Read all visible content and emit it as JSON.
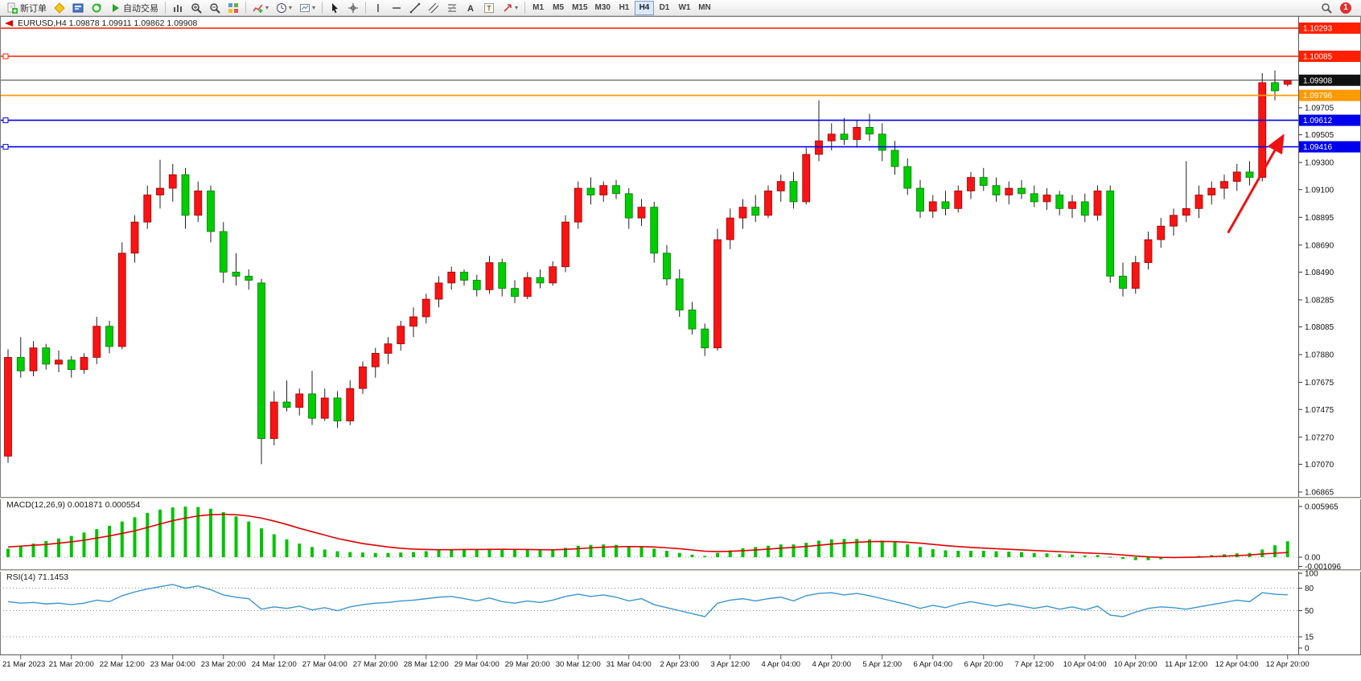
{
  "toolbar": {
    "groups": [
      {
        "items": [
          {
            "name": "new-order",
            "icon": "new-order",
            "label": "新订单"
          },
          {
            "name": "metaeditor",
            "icon": "metaeditor"
          },
          {
            "name": "terminal",
            "icon": "terminal"
          },
          {
            "name": "refresh",
            "icon": "refresh"
          },
          {
            "name": "autotrading",
            "icon": "autotrading",
            "label": "自动交易"
          }
        ]
      },
      {
        "items": [
          {
            "name": "bar-chart",
            "icon": "bars"
          },
          {
            "name": "zoom-in",
            "icon": "zoom-in"
          },
          {
            "name": "zoom-out",
            "icon": "zoom-out"
          },
          {
            "name": "tile-windows",
            "icon": "tile"
          }
        ]
      },
      {
        "items": [
          {
            "name": "indicators",
            "icon": "indicators",
            "dropdown": true
          },
          {
            "name": "periods",
            "icon": "clock",
            "dropdown": true
          },
          {
            "name": "templates",
            "icon": "template",
            "dropdown": true
          }
        ]
      },
      {
        "items": [
          {
            "name": "cursor",
            "icon": "cursor"
          },
          {
            "name": "crosshair",
            "icon": "crosshair"
          }
        ]
      },
      {
        "items": [
          {
            "name": "vertical-line",
            "icon": "vline"
          },
          {
            "name": "horizontal-line",
            "icon": "hline"
          },
          {
            "name": "trendline",
            "icon": "trendline"
          },
          {
            "name": "equidistant-channel",
            "icon": "channel"
          },
          {
            "name": "fibonacci-retracement",
            "icon": "fibo"
          },
          {
            "name": "text",
            "icon": "text-a"
          },
          {
            "name": "text-label",
            "icon": "text-t"
          },
          {
            "name": "arrow-tools",
            "icon": "arrows",
            "dropdown": true
          }
        ]
      }
    ],
    "timeframes": [
      "M1",
      "M5",
      "M15",
      "M30",
      "H1",
      "H4",
      "D1",
      "W1",
      "MN"
    ],
    "active_timeframe": "H4",
    "notification_badge": "1"
  },
  "chart_data": [
    {
      "type": "candlestick",
      "symbol": "EURUSD",
      "timeframe": "H4",
      "title": "EURUSD,H4 1.09878 1.09911 1.09862 1.09908",
      "up_color": "#f81414",
      "down_color": "#00cd00",
      "wick_color": "#222222",
      "y_ticks": [
        "1.09705",
        "1.09505",
        "1.09300",
        "1.09100",
        "1.08895",
        "1.08690",
        "1.08490",
        "1.08285",
        "1.08085",
        "1.07880",
        "1.07675",
        "1.07475",
        "1.07270",
        "1.07070",
        "1.06865"
      ],
      "price_tags": [
        {
          "text": "1.10293",
          "color": "#ff2000"
        },
        {
          "text": "1.10085",
          "color": "#ff2000"
        },
        {
          "text": "1.09908",
          "color": "#111111"
        },
        {
          "text": "1.09796",
          "color": "#ff9900"
        },
        {
          "text": "1.09612",
          "color": "#0000ee"
        },
        {
          "text": "1.09416",
          "color": "#0000ee"
        }
      ],
      "price_lines": [
        {
          "price": 1.10293,
          "color": "#ff2000",
          "width": 1.6
        },
        {
          "price": 1.10085,
          "color": "#ff2000",
          "width": 1.6,
          "handle": true
        },
        {
          "price": 1.09908,
          "color": "#333333",
          "width": 1
        },
        {
          "price": 1.09796,
          "color": "#ff9900",
          "width": 1.8
        },
        {
          "price": 1.09612,
          "color": "#0000ee",
          "width": 1.6,
          "handle": true
        },
        {
          "price": 1.09416,
          "color": "#0000ee",
          "width": 1.6,
          "handle": true
        }
      ],
      "x_labels": [
        "21 Mar 2023",
        "21 Mar 20:00",
        "22 Mar 12:00",
        "23 Mar 04:00",
        "23 Mar 20:00",
        "24 Mar 12:00",
        "27 Mar 04:00",
        "27 Mar 20:00",
        "28 Mar 12:00",
        "29 Mar 04:00",
        "29 Mar 20:00",
        "30 Mar 12:00",
        "31 Mar 04:00",
        "2 Apr 23:00",
        "3 Apr 12:00",
        "4 Apr 04:00",
        "4 Apr 20:00",
        "5 Apr 12:00",
        "6 Apr 04:00",
        "6 Apr 20:00",
        "7 Apr 12:00",
        "10 Apr 04:00",
        "10 Apr 20:00",
        "11 Apr 12:00",
        "12 Apr 04:00",
        "12 Apr 20:00"
      ],
      "bars_per_label": 4,
      "first_labeled_bar": 1,
      "candles": [
        [
          1.0713,
          1.0792,
          1.0708,
          1.0786
        ],
        [
          1.0786,
          1.0801,
          1.0771,
          1.0776
        ],
        [
          1.0776,
          1.0798,
          1.0772,
          1.0793
        ],
        [
          1.0793,
          1.0796,
          1.0777,
          1.0781
        ],
        [
          1.0781,
          1.0791,
          1.0775,
          1.0784
        ],
        [
          1.0784,
          1.0787,
          1.0771,
          1.0777
        ],
        [
          1.0777,
          1.0789,
          1.0774,
          1.0786
        ],
        [
          1.0786,
          1.0816,
          1.0781,
          1.0809
        ],
        [
          1.0809,
          1.0813,
          1.0789,
          1.0794
        ],
        [
          1.0794,
          1.0871,
          1.0792,
          1.0863
        ],
        [
          1.0863,
          1.0891,
          1.0856,
          1.0886
        ],
        [
          1.0886,
          1.0913,
          1.0881,
          1.0906
        ],
        [
          1.0906,
          1.0932,
          1.0896,
          1.0911
        ],
        [
          1.0911,
          1.0929,
          1.0901,
          1.0921
        ],
        [
          1.0921,
          1.0926,
          1.0881,
          1.0891
        ],
        [
          1.0891,
          1.0916,
          1.0886,
          1.0909
        ],
        [
          1.0909,
          1.0913,
          1.0871,
          1.0879
        ],
        [
          1.0879,
          1.0886,
          1.0841,
          1.0849
        ],
        [
          1.0849,
          1.0863,
          1.0839,
          1.0846
        ],
        [
          1.0846,
          1.0851,
          1.0836,
          1.0843
        ],
        [
          1.0841,
          1.0844,
          1.0707,
          1.0726
        ],
        [
          1.0726,
          1.0761,
          1.0721,
          1.0753
        ],
        [
          1.0753,
          1.0769,
          1.0746,
          1.0749
        ],
        [
          1.0749,
          1.0763,
          1.0743,
          1.0759
        ],
        [
          1.0759,
          1.0776,
          1.0736,
          1.0741
        ],
        [
          1.0741,
          1.0763,
          1.0739,
          1.0756
        ],
        [
          1.0756,
          1.0761,
          1.0734,
          1.0739
        ],
        [
          1.0739,
          1.0769,
          1.0736,
          1.0763
        ],
        [
          1.0763,
          1.0783,
          1.0759,
          1.0779
        ],
        [
          1.0779,
          1.0793,
          1.0771,
          1.0789
        ],
        [
          1.0789,
          1.0801,
          1.0781,
          1.0796
        ],
        [
          1.0796,
          1.0813,
          1.0791,
          1.0809
        ],
        [
          1.0809,
          1.0823,
          1.0801,
          1.0816
        ],
        [
          1.0816,
          1.0833,
          1.0811,
          1.0829
        ],
        [
          1.0829,
          1.0846,
          1.0823,
          1.0841
        ],
        [
          1.0841,
          1.0853,
          1.0836,
          1.0849
        ],
        [
          1.0849,
          1.0851,
          1.0839,
          1.0843
        ],
        [
          1.0843,
          1.0847,
          1.0831,
          1.0836
        ],
        [
          1.0836,
          1.0861,
          1.0833,
          1.0856
        ],
        [
          1.0856,
          1.0859,
          1.0831,
          1.0837
        ],
        [
          1.0837,
          1.0843,
          1.0826,
          1.0831
        ],
        [
          1.0831,
          1.0849,
          1.0829,
          1.0845
        ],
        [
          1.0845,
          1.0851,
          1.0837,
          1.0841
        ],
        [
          1.0841,
          1.0857,
          1.0839,
          1.0853
        ],
        [
          1.0853,
          1.0891,
          1.0849,
          1.0886
        ],
        [
          1.0886,
          1.0916,
          1.0881,
          1.0911
        ],
        [
          1.0911,
          1.0919,
          1.0899,
          1.0906
        ],
        [
          1.0906,
          1.0916,
          1.0901,
          1.0913
        ],
        [
          1.0913,
          1.0917,
          1.0903,
          1.0907
        ],
        [
          1.0907,
          1.0911,
          1.0881,
          1.0889
        ],
        [
          1.0889,
          1.0903,
          1.0883,
          1.0897
        ],
        [
          1.0897,
          1.0901,
          1.0856,
          1.0863
        ],
        [
          1.0863,
          1.0869,
          1.0839,
          1.0844
        ],
        [
          1.0844,
          1.0851,
          1.0816,
          1.0821
        ],
        [
          1.0821,
          1.0827,
          1.0803,
          1.0807
        ],
        [
          1.0807,
          1.0811,
          1.0787,
          1.0793
        ],
        [
          1.0793,
          1.0881,
          1.0791,
          1.0873
        ],
        [
          1.0873,
          1.0896,
          1.0866,
          1.0889
        ],
        [
          1.0889,
          1.0903,
          1.0881,
          1.0897
        ],
        [
          1.0897,
          1.0906,
          1.0886,
          1.0891
        ],
        [
          1.0891,
          1.0913,
          1.0889,
          1.0909
        ],
        [
          1.0909,
          1.0921,
          1.0901,
          1.0916
        ],
        [
          1.0916,
          1.0923,
          1.0896,
          1.0901
        ],
        [
          1.0901,
          1.0941,
          1.0899,
          1.0936
        ],
        [
          1.0936,
          1.0976,
          1.0931,
          1.0946
        ],
        [
          1.0946,
          1.0959,
          1.0939,
          1.0951
        ],
        [
          1.0951,
          1.0963,
          1.0943,
          1.0947
        ],
        [
          1.0947,
          1.0961,
          1.0941,
          1.0956
        ],
        [
          1.0956,
          1.0966,
          1.0946,
          1.0951
        ],
        [
          1.0951,
          1.0959,
          1.0931,
          1.0939
        ],
        [
          1.0939,
          1.0946,
          1.0921,
          1.0927
        ],
        [
          1.0927,
          1.0933,
          1.0906,
          1.0911
        ],
        [
          1.0911,
          1.0917,
          1.0889,
          1.0894
        ],
        [
          1.0894,
          1.0906,
          1.0889,
          1.0901
        ],
        [
          1.0901,
          1.0909,
          1.0891,
          1.0896
        ],
        [
          1.0896,
          1.0913,
          1.0893,
          1.0909
        ],
        [
          1.0909,
          1.0923,
          1.0903,
          1.0919
        ],
        [
          1.0919,
          1.0926,
          1.0909,
          1.0913
        ],
        [
          1.0913,
          1.0919,
          1.0901,
          1.0906
        ],
        [
          1.0906,
          1.0916,
          1.0899,
          1.0911
        ],
        [
          1.0911,
          1.0917,
          1.0903,
          1.0907
        ],
        [
          1.0907,
          1.0913,
          1.0897,
          1.0901
        ],
        [
          1.0901,
          1.0911,
          1.0895,
          1.0906
        ],
        [
          1.0906,
          1.0909,
          1.0891,
          1.0896
        ],
        [
          1.0896,
          1.0906,
          1.0889,
          1.0901
        ],
        [
          1.0901,
          1.0907,
          1.0886,
          1.0891
        ],
        [
          1.0891,
          1.0913,
          1.0887,
          1.0909
        ],
        [
          1.0909,
          1.0913,
          1.0841,
          1.0846
        ],
        [
          1.0846,
          1.0856,
          1.0831,
          1.0837
        ],
        [
          1.0837,
          1.0861,
          1.0833,
          1.0856
        ],
        [
          1.0856,
          1.0879,
          1.0851,
          1.0873
        ],
        [
          1.0873,
          1.0889,
          1.0867,
          1.0883
        ],
        [
          1.0883,
          1.0896,
          1.0876,
          1.0891
        ],
        [
          1.0891,
          1.0931,
          1.0886,
          1.0896
        ],
        [
          1.0896,
          1.0913,
          1.0889,
          1.0906
        ],
        [
          1.0906,
          1.0916,
          1.0899,
          1.0911
        ],
        [
          1.0911,
          1.0921,
          1.0903,
          1.0916
        ],
        [
          1.0916,
          1.0929,
          1.0909,
          1.0923
        ],
        [
          1.0923,
          1.0931,
          1.0913,
          1.0919
        ],
        [
          1.0919,
          1.0996,
          1.0916,
          1.0989
        ],
        [
          1.0989,
          1.0998,
          1.0976,
          1.0983
        ],
        [
          1.09878,
          1.09911,
          1.09862,
          1.09908
        ]
      ],
      "annotation_arrow": {
        "from_bar": 96.3,
        "from_price": 1.0878,
        "to_bar": 100.6,
        "to_price": 1.0949,
        "color": "#ee1111"
      }
    },
    {
      "type": "bar",
      "name": "MACD",
      "label": "MACD(12,26,9) 0.001871 0.000554",
      "histogram_color": "#00c400",
      "signal_color": "#e00000",
      "y_ticks": [
        "0.005965",
        "0.00",
        "-0.001096"
      ],
      "values": [
        0.001,
        0.0013,
        0.0016,
        0.0019,
        0.0022,
        0.0025,
        0.0029,
        0.0033,
        0.0037,
        0.0042,
        0.0047,
        0.0052,
        0.0056,
        0.00585,
        0.00595,
        0.0059,
        0.0057,
        0.0053,
        0.0048,
        0.0042,
        0.0034,
        0.0027,
        0.0021,
        0.0016,
        0.0012,
        0.0009,
        0.0007,
        0.0006,
        0.00055,
        0.0005,
        0.0005,
        0.00055,
        0.0006,
        0.0007,
        0.0008,
        0.0009,
        0.00095,
        0.0009,
        0.001,
        0.00095,
        0.00085,
        0.00085,
        0.0008,
        0.00085,
        0.0011,
        0.00135,
        0.00145,
        0.0015,
        0.00145,
        0.0013,
        0.0012,
        0.001,
        0.00075,
        0.0005,
        0.0003,
        0.00015,
        0.0005,
        0.0008,
        0.00105,
        0.0012,
        0.00135,
        0.0015,
        0.0015,
        0.0017,
        0.00195,
        0.0021,
        0.00215,
        0.00215,
        0.0021,
        0.00195,
        0.00175,
        0.0015,
        0.0012,
        0.00095,
        0.0008,
        0.00075,
        0.00075,
        0.00075,
        0.0007,
        0.00065,
        0.0006,
        0.0005,
        0.00045,
        0.00035,
        0.0003,
        0.0002,
        0.00025,
        5e-05,
        -0.0002,
        -0.00035,
        -0.00035,
        -0.00025,
        -0.0001,
        5e-05,
        0.00015,
        0.00025,
        0.00035,
        0.00045,
        0.0005,
        0.0009,
        0.0014,
        0.001871
      ],
      "signal": [
        0.0012,
        0.0013,
        0.0014,
        0.0015,
        0.00165,
        0.0018,
        0.002,
        0.00225,
        0.0025,
        0.0028,
        0.0031,
        0.0035,
        0.0039,
        0.0043,
        0.0046,
        0.00485,
        0.005,
        0.00505,
        0.005,
        0.00485,
        0.0046,
        0.00425,
        0.00385,
        0.0034,
        0.003,
        0.0026,
        0.0022,
        0.0019,
        0.0016,
        0.0014,
        0.0012,
        0.00105,
        0.00095,
        0.0009,
        0.00088,
        0.00088,
        0.0009,
        0.0009,
        0.00092,
        0.00093,
        0.00092,
        0.0009,
        0.00088,
        0.00087,
        0.00092,
        0.001,
        0.0011,
        0.00118,
        0.00123,
        0.00125,
        0.00124,
        0.0012,
        0.0011,
        0.001,
        0.00085,
        0.0007,
        0.00066,
        0.00069,
        0.00076,
        0.00085,
        0.00095,
        0.00106,
        0.00115,
        0.00126,
        0.0014,
        0.00154,
        0.00166,
        0.00176,
        0.00183,
        0.00185,
        0.00183,
        0.00176,
        0.00165,
        0.00151,
        0.00137,
        0.00125,
        0.00115,
        0.00107,
        0.001,
        0.00093,
        0.00086,
        0.00079,
        0.00072,
        0.00065,
        0.00058,
        0.0005,
        0.00045,
        0.00037,
        0.00026,
        0.00014,
        4e-05,
        -2e-05,
        -4e-05,
        -2e-05,
        1e-05,
        6e-05,
        0.00012,
        0.00019,
        0.00025,
        0.00038,
        0.00046,
        0.000554
      ]
    },
    {
      "type": "line",
      "name": "RSI",
      "label": "RSI(14) 71.1453",
      "line_color": "#3a95d0",
      "levels": [
        80,
        50,
        15
      ],
      "y_ticks": [
        "100",
        "80",
        "50",
        "15",
        "0"
      ],
      "values": [
        62,
        60,
        61,
        59,
        60,
        58,
        60,
        64,
        62,
        70,
        75,
        79,
        82,
        85,
        80,
        83,
        78,
        71,
        68,
        66,
        52,
        55,
        53,
        56,
        51,
        54,
        50,
        55,
        58,
        60,
        61,
        63,
        64,
        66,
        68,
        69,
        66,
        63,
        67,
        62,
        60,
        63,
        61,
        64,
        69,
        72,
        69,
        71,
        68,
        63,
        66,
        58,
        54,
        50,
        46,
        42,
        60,
        64,
        66,
        63,
        66,
        68,
        63,
        70,
        73,
        74,
        71,
        73,
        70,
        66,
        62,
        58,
        53,
        57,
        54,
        59,
        62,
        59,
        56,
        59,
        56,
        53,
        56,
        52,
        55,
        51,
        56,
        44,
        42,
        48,
        53,
        55,
        54,
        52,
        55,
        58,
        61,
        64,
        62,
        74,
        72,
        71.1453
      ]
    }
  ]
}
